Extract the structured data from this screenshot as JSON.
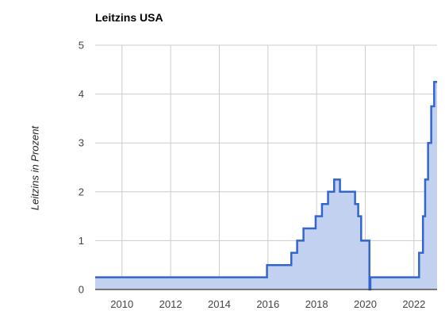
{
  "chart_data": {
    "type": "area",
    "title": "Leitzins USA",
    "xlabel": "",
    "ylabel": "Leitzins in Prozent",
    "xlim": [
      2008.9,
      2022.95
    ],
    "ylim": [
      0,
      5
    ],
    "grid": true,
    "x_ticks": [
      2010,
      2012,
      2014,
      2016,
      2018,
      2020,
      2022
    ],
    "y_ticks": [
      0,
      1,
      2,
      3,
      4,
      5
    ],
    "colors": {
      "line": "#3366cc",
      "fill": "#c2d1f0",
      "grid": "#cccccc"
    },
    "series": [
      {
        "step": true,
        "x": [
          2008.9,
          2015.96,
          2016.96,
          2017.2,
          2017.46,
          2017.96,
          2018.22,
          2018.47,
          2018.72,
          2018.96,
          2019.58,
          2019.71,
          2019.83,
          2020.17,
          2020.21,
          2022.21,
          2022.37,
          2022.46,
          2022.58,
          2022.71,
          2022.83,
          2022.95
        ],
        "values": [
          0.25,
          0.5,
          0.75,
          1.0,
          1.25,
          1.5,
          1.75,
          2.0,
          2.25,
          2.0,
          1.75,
          1.5,
          1.0,
          0.0,
          0.25,
          0.75,
          1.5,
          2.25,
          3.0,
          3.75,
          4.25,
          4.25
        ]
      }
    ]
  }
}
